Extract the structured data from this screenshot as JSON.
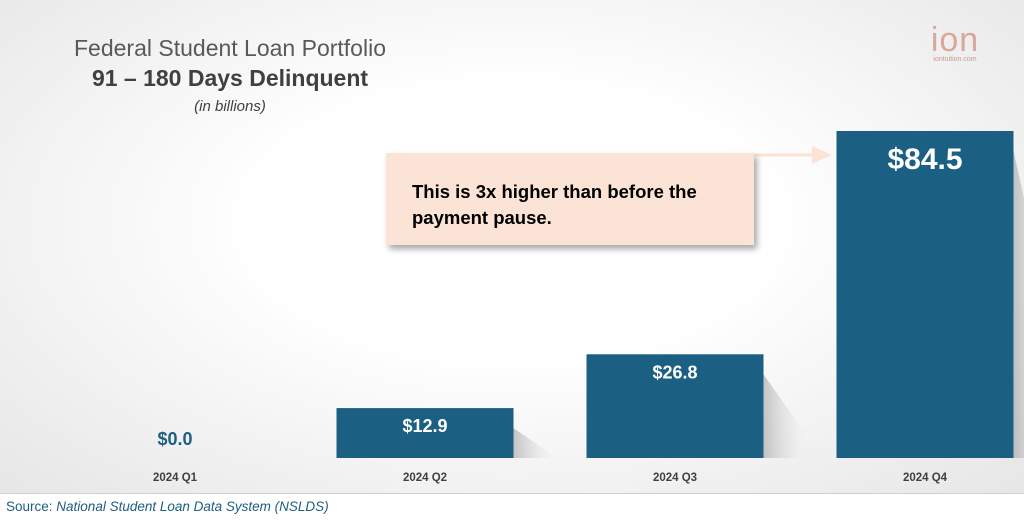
{
  "header": {
    "title": "Federal Student Loan Portfolio",
    "subtitle": "91 – 180 Days Delinquent",
    "unit": "(in billions)"
  },
  "logo": {
    "mark": "ion",
    "url_text": "iontuition.com"
  },
  "callout": {
    "text": "This is 3x higher than before the payment pause."
  },
  "footer": {
    "source_label": "Source:",
    "source_text": "National Student Loan Data System (NSLDS)"
  },
  "colors": {
    "bar": "#1b5f82",
    "bar_label_dark": "#1b5f82",
    "bar_label_light": "#ffffff",
    "callout_bg": "#fbe3d6",
    "arrow": "#fbe3d6"
  },
  "chart_data": {
    "type": "bar",
    "title": "Federal Student Loan Portfolio",
    "subtitle": "91 – 180 Days Delinquent",
    "ylabel": "",
    "xlabel": "",
    "categories": [
      "2024 Q1",
      "2024 Q2",
      "2024 Q3",
      "2024 Q4"
    ],
    "values": [
      0.0,
      12.9,
      26.8,
      84.5
    ],
    "data_labels": [
      "$0.0",
      "$12.9",
      "$26.8",
      "$84.5"
    ],
    "ylim": [
      0,
      84.5
    ],
    "grid": false,
    "legend": "none"
  }
}
